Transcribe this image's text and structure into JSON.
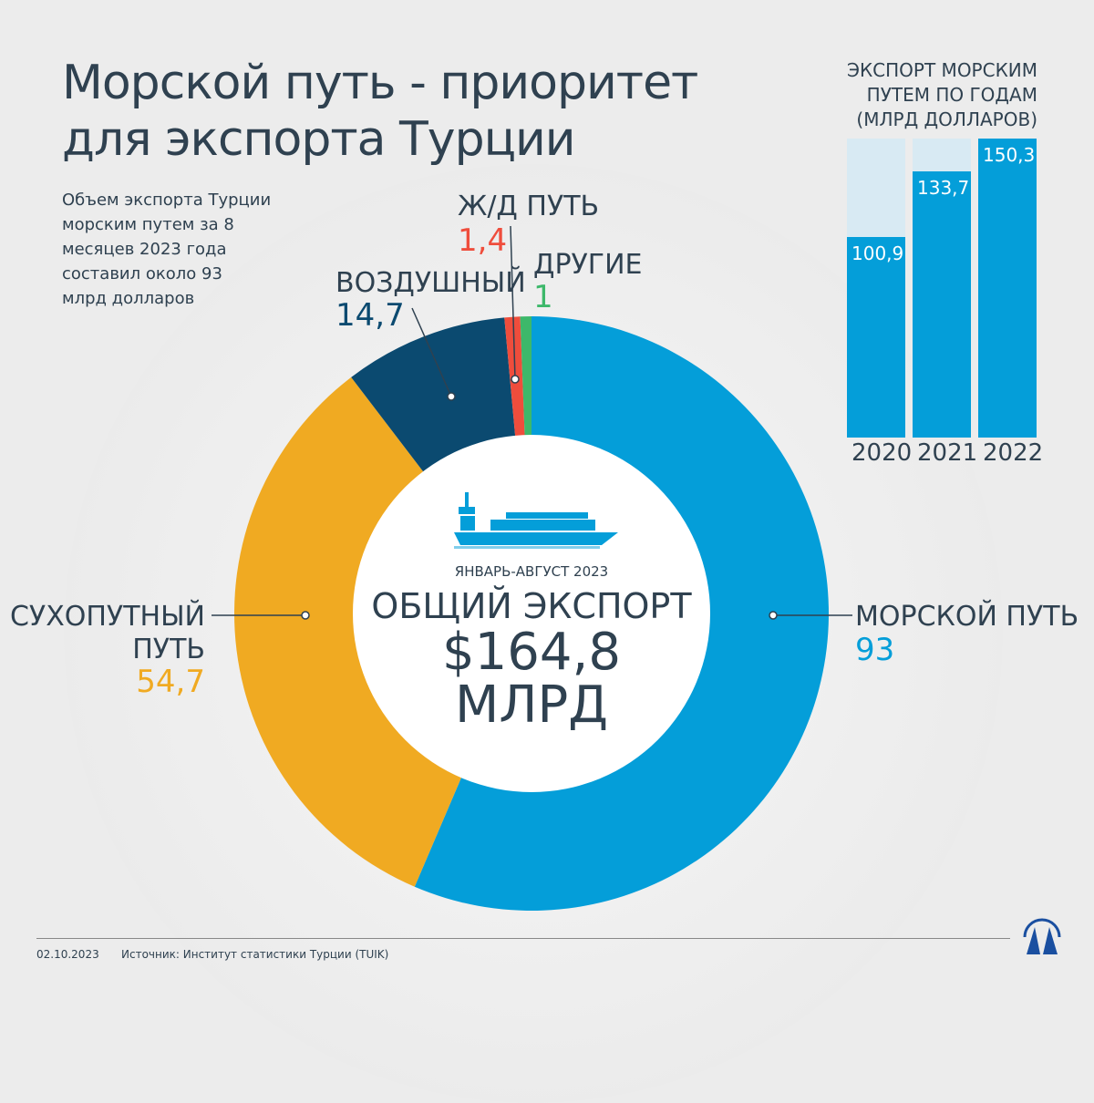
{
  "title_line1": "Морской путь - приоритет",
  "title_line2": "для экспорта Турции",
  "description": "Объем экспорта Турции морским путем за 8 месяцев 2023 года составил около 93 млрд долларов",
  "center": {
    "period": "ЯНВАРЬ-АВГУСТ 2023",
    "label": "ОБЩИЙ ЭКСПОРТ",
    "amount": "$164,8",
    "unit": "МЛРД",
    "icon": "container-ship-icon"
  },
  "labels": {
    "sea": {
      "name": "МОРСКОЙ ПУТЬ",
      "value": "93"
    },
    "land_1": "СУХОПУТНЫЙ",
    "land_2": "ПУТЬ",
    "land_value": "54,7",
    "air": {
      "name": "ВОЗДУШНЫЙ",
      "value": "14,7"
    },
    "rail": {
      "name": "Ж/Д ПУТЬ",
      "value": "1,4"
    },
    "other": {
      "name": "ДРУГИЕ",
      "value": "1"
    }
  },
  "bar_title": [
    "ЭКСПОРТ МОРСКИМ",
    "ПУТЕМ ПО ГОДАМ",
    "(МЛРД  ДОЛЛАРОВ)"
  ],
  "footer": {
    "date": "02.10.2023",
    "source": "Источник: Институт статистики Турции (TUIK)",
    "logo": "AA"
  },
  "chart_data": [
    {
      "type": "pie",
      "donut": true,
      "title": "ОБЩИЙ ЭКСПОРТ $164,8 МЛРД",
      "categories": [
        "МОРСКОЙ ПУТЬ",
        "СУХОПУТНЫЙ ПУТЬ",
        "ВОЗДУШНЫЙ",
        "Ж/Д ПУТЬ",
        "ДРУГИЕ"
      ],
      "values": [
        93,
        54.7,
        14.7,
        1.4,
        1
      ],
      "colors": [
        "#049ed9",
        "#f0aa22",
        "#0b4a70",
        "#ef4d3c",
        "#3db86a"
      ]
    },
    {
      "type": "bar",
      "title": "ЭКСПОРТ МОРСКИМ ПУТЕМ ПО ГОДАМ (МЛРД  ДОЛЛАРОВ)",
      "categories": [
        "2020",
        "2021",
        "2022"
      ],
      "values": [
        100.9,
        133.7,
        150.3
      ],
      "value_labels": [
        "100,9",
        "133,7",
        "150,3"
      ],
      "ylim": [
        0,
        150.3
      ],
      "colors": {
        "bar": "#049ed9",
        "track": "#d8eaf3"
      }
    }
  ]
}
